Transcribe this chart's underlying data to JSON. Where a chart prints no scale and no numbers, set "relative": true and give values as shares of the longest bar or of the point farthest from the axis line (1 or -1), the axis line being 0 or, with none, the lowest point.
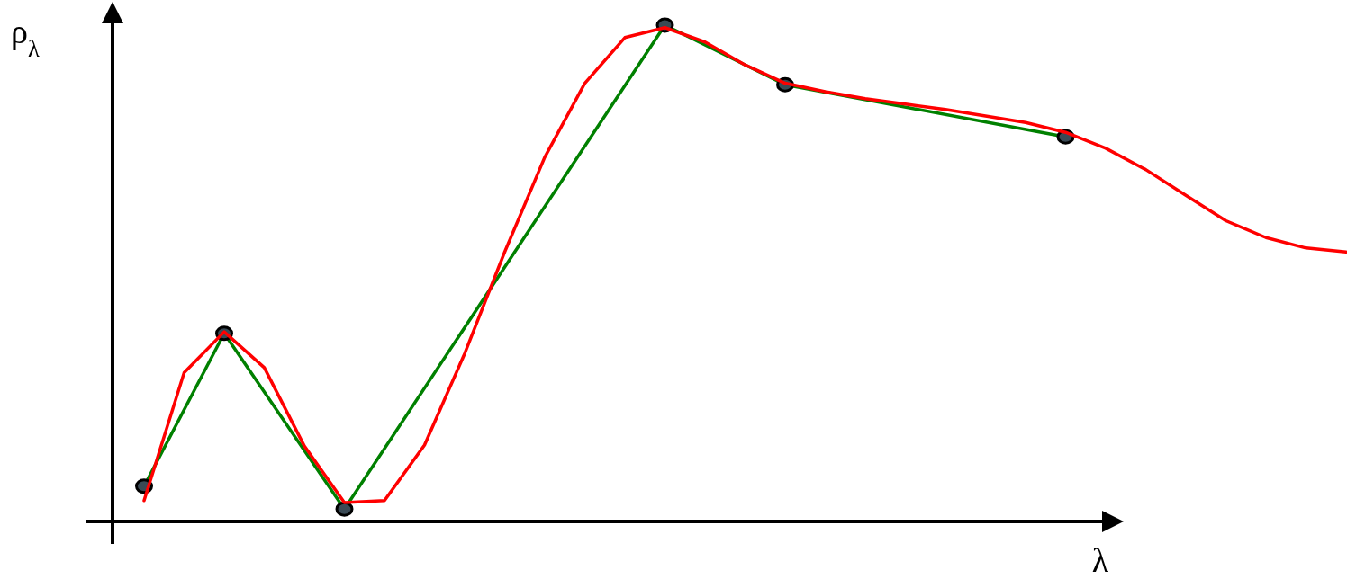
{
  "chart_data": {
    "type": "line",
    "relative": true,
    "xlabel": "λ",
    "ylabel": "ρ$_{λ}$",
    "categories": [
      null,
      null,
      null,
      null,
      null,
      null,
      null,
      null,
      null,
      null,
      null,
      null,
      null,
      null,
      null,
      null,
      null,
      null,
      null,
      null,
      null,
      null,
      null,
      null,
      null,
      null,
      null,
      null,
      null,
      null,
      null
    ],
    "series": [
      {
        "color": "#ff0000",
        "marker": "none",
        "values": [
          0.042,
          0.3,
          0.382,
          0.31,
          0.152,
          0.038,
          0.042,
          0.154,
          0.338,
          0.543,
          0.734,
          0.883,
          0.975,
          0.995,
          0.966,
          0.92,
          0.883,
          0.866,
          0.852,
          0.841,
          0.83,
          0.817,
          0.804,
          0.784,
          0.752,
          0.709,
          0.657,
          0.606,
          0.572,
          0.551,
          0.543
        ]
      },
      {
        "color": "#008000",
        "marker": "circle",
        "values": [
          0.071,
          null,
          0.379,
          null,
          null,
          0.025,
          null,
          null,
          null,
          null,
          null,
          null,
          null,
          1,
          null,
          null,
          0.88,
          null,
          null,
          null,
          null,
          null,
          null,
          0.775,
          null,
          null,
          null,
          null,
          null,
          null,
          null
        ]
      }
    ]
  }
}
